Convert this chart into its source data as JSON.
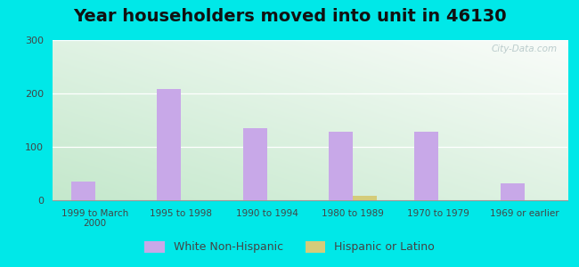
{
  "title": "Year householders moved into unit in 46130",
  "categories": [
    "1999 to March\n2000",
    "1995 to 1998",
    "1990 to 1994",
    "1980 to 1989",
    "1970 to 1979",
    "1969 or earlier"
  ],
  "white_values": [
    35,
    208,
    135,
    128,
    128,
    32
  ],
  "hispanic_values": [
    0,
    0,
    0,
    8,
    0,
    0
  ],
  "white_color": "#c8a8e8",
  "hispanic_color": "#d4cc7a",
  "background_outer": "#00e8e8",
  "plot_bg_top": "#f0f8f0",
  "plot_bg_bottom": "#c8e8d0",
  "ylim": [
    0,
    300
  ],
  "yticks": [
    0,
    100,
    200,
    300
  ],
  "bar_width": 0.28,
  "title_fontsize": 14
}
